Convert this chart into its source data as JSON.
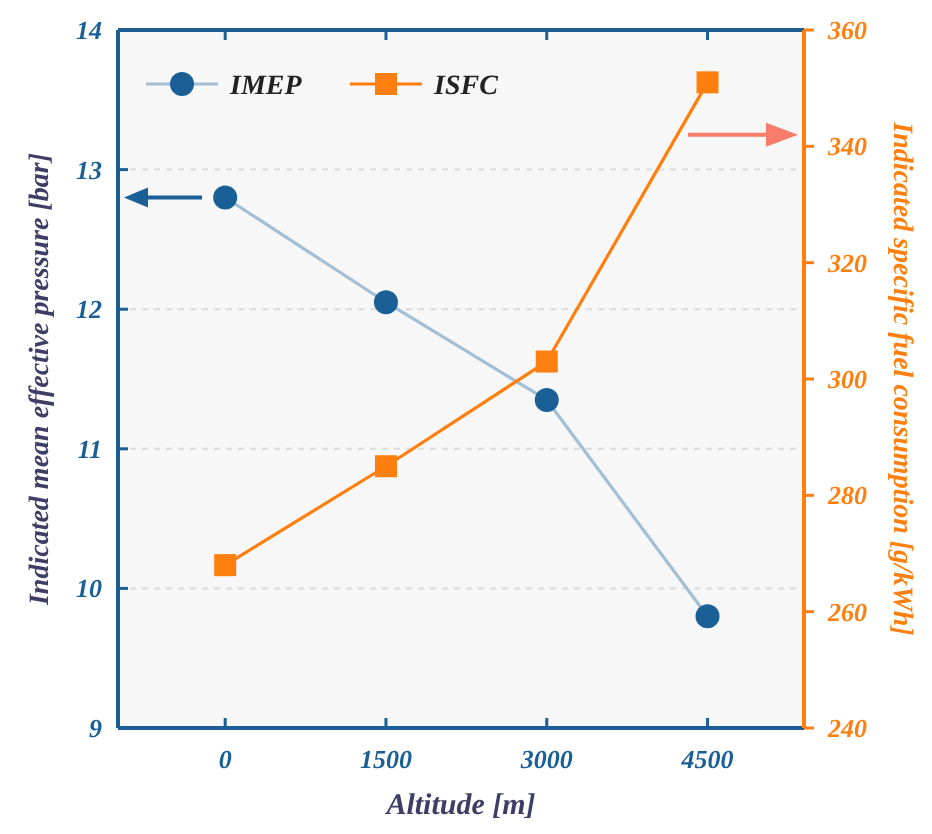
{
  "chart_data": {
    "type": "line",
    "xlabel": "Altitude [m]",
    "ylabel": "Indicated mean effective pressure [bar]",
    "y2label": "Indicated specific fuel consumption [g/kWh]",
    "x": [
      0,
      1500,
      3000,
      4500
    ],
    "xlim": [
      -1000,
      5400
    ],
    "xticks": [
      0,
      1500,
      3000,
      4500
    ],
    "ylim": [
      9,
      14
    ],
    "yticks": [
      9,
      10,
      11,
      12,
      13,
      14
    ],
    "y2lim": [
      240,
      360
    ],
    "y2ticks": [
      240,
      260,
      280,
      300,
      320,
      340,
      360
    ],
    "series": [
      {
        "name": "IMEP",
        "color": "#1a5f96",
        "values": [
          12.8,
          12.05,
          11.35,
          9.8
        ],
        "marker": "circle"
      },
      {
        "name": "ISFC",
        "color": "#ff7f0e",
        "values": [
          268,
          285,
          303,
          351
        ],
        "marker": "square",
        "axis": "y2"
      }
    ],
    "grid": "y",
    "legend": "top left",
    "line_style": "solid"
  }
}
